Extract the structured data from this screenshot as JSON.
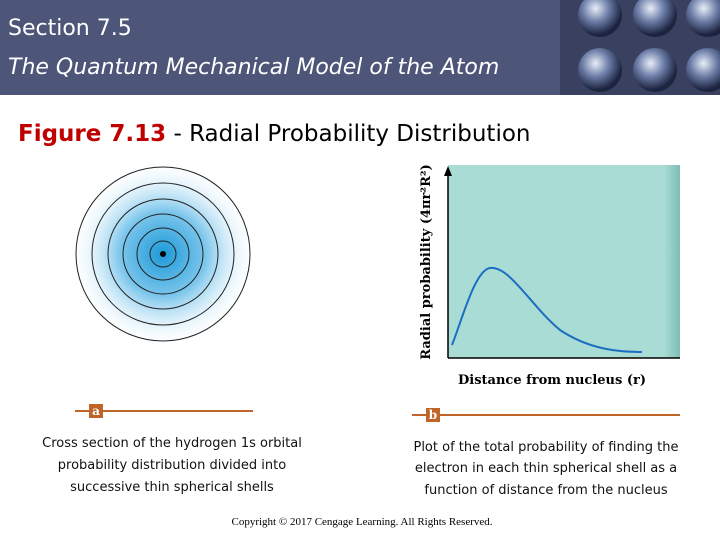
{
  "header": {
    "section": "Section 7.5",
    "subtitle": "The Quantum Mechanical Model of the Atom"
  },
  "figure": {
    "number": "Figure 7.13",
    "separator": " - ",
    "title": "Radial Probability Distribution"
  },
  "panel_a": {
    "label": "a",
    "caption_lines": [
      "Cross section of the hydrogen 1s orbital",
      "probability distribution divided into",
      "successive thin spherical shells"
    ]
  },
  "panel_b": {
    "label": "b",
    "y_label": "Radial probability (4πr²R²)",
    "x_label": "Distance from nucleus (r)",
    "caption_lines": [
      "Plot of the total probability of finding the",
      "electron in each thin spherical shell as a",
      "function of distance from the nucleus"
    ]
  },
  "footer": {
    "copyright": "Copyright © 2017 Cengage Learning. All Rights Reserved."
  }
}
